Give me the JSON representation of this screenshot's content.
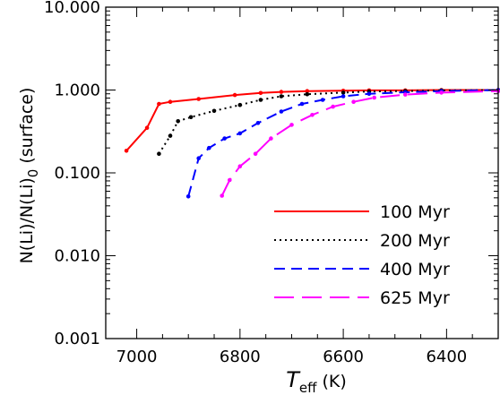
{
  "chart_data": {
    "type": "line",
    "xlabel": {
      "main": "T",
      "sub": "eff",
      "unit": " (K)"
    },
    "ylabel": {
      "main": "N(Li)/N(Li)",
      "sub": "0",
      "suffix": " (surface)"
    },
    "xlim": [
      7060,
      6300
    ],
    "ylim": [
      0.001,
      10
    ],
    "yscale": "log",
    "xticks": [
      7000,
      6800,
      6600,
      6400
    ],
    "yticks": [
      {
        "value": 0.001,
        "label": "0.001"
      },
      {
        "value": 0.01,
        "label": "0.010"
      },
      {
        "value": 0.1,
        "label": "0.100"
      },
      {
        "value": 1,
        "label": "1.000"
      },
      {
        "value": 10,
        "label": "10.000"
      }
    ],
    "legend_position": "lower-right",
    "series": [
      {
        "name": "100 Myr",
        "color": "#ff0000",
        "dash": "solid",
        "x": [
          7020,
          6980,
          6957,
          6935,
          6880,
          6810,
          6760,
          6720,
          6670,
          6600,
          6550,
          6480,
          6410,
          6300
        ],
        "y": [
          0.185,
          0.35,
          0.68,
          0.72,
          0.78,
          0.87,
          0.92,
          0.95,
          0.97,
          0.98,
          0.99,
          0.99,
          1.0,
          1.0
        ]
      },
      {
        "name": "200 Myr",
        "color": "#000000",
        "dash": "dotted",
        "x": [
          6957,
          6935,
          6920,
          6895,
          6850,
          6800,
          6760,
          6720,
          6670,
          6600,
          6550,
          6480,
          6410,
          6300
        ],
        "y": [
          0.17,
          0.28,
          0.42,
          0.47,
          0.56,
          0.66,
          0.76,
          0.84,
          0.89,
          0.93,
          0.96,
          0.97,
          0.99,
          1.0
        ]
      },
      {
        "name": "400 Myr",
        "color": "#0000ff",
        "dash": "dashed",
        "x": [
          6900,
          6880,
          6860,
          6830,
          6800,
          6765,
          6720,
          6680,
          6640,
          6600,
          6550,
          6480,
          6410,
          6300
        ],
        "y": [
          0.052,
          0.15,
          0.2,
          0.26,
          0.3,
          0.4,
          0.55,
          0.68,
          0.76,
          0.84,
          0.9,
          0.94,
          0.97,
          1.0
        ]
      },
      {
        "name": "625 Myr",
        "color": "#ff00ff",
        "dash": "longdash",
        "x": [
          6835,
          6820,
          6800,
          6770,
          6740,
          6700,
          6660,
          6620,
          6580,
          6540,
          6480,
          6410,
          6300
        ],
        "y": [
          0.053,
          0.082,
          0.12,
          0.17,
          0.26,
          0.38,
          0.5,
          0.63,
          0.72,
          0.81,
          0.88,
          0.93,
          0.97
        ]
      }
    ]
  }
}
